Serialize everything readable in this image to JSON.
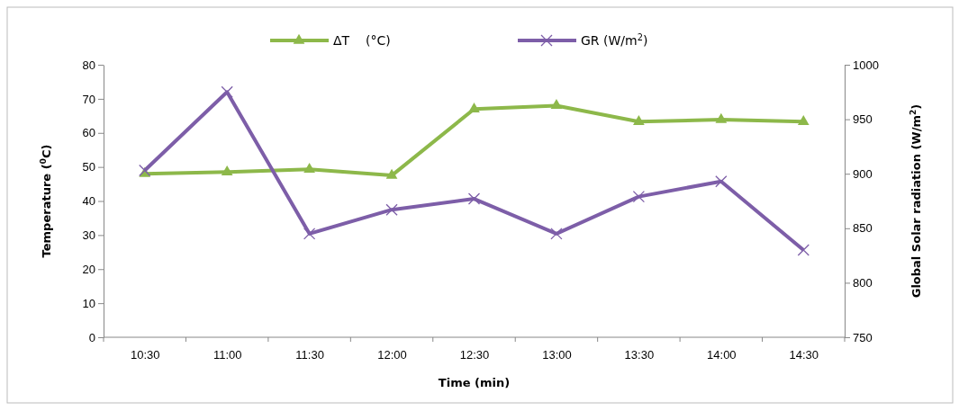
{
  "chart_data": {
    "type": "line",
    "xlabel": "Time (min)",
    "ylabel": "Temperature ($^{0}$C)",
    "y2label": "Global Solar radiation (W/m$^{2}$)",
    "categories": [
      "10:30",
      "11:00",
      "11:30",
      "12:00",
      "12:30",
      "13:00",
      "13:30",
      "14:00",
      "14:30"
    ],
    "series": [
      {
        "name": "ΔT    (°C)",
        "color": "#8db84a",
        "marker": "triangle",
        "values": [
          48,
          48.5,
          49.3,
          47.5,
          67,
          68,
          63.3,
          63.9,
          63.3
        ]
      },
      {
        "name": "GR (W/m$^{2}$)",
        "color": "#7d5ea8",
        "marker": "cross",
        "axis": "y2",
        "values": [
          903,
          975,
          845,
          867,
          877,
          845,
          879,
          893,
          830
        ]
      }
    ],
    "ylim": [
      0,
      80
    ],
    "yticks": [
      0,
      10,
      20,
      30,
      40,
      50,
      60,
      70,
      80
    ],
    "y2lim": [
      750,
      1000
    ],
    "y2ticks": [
      750,
      800,
      850,
      900,
      950,
      1000
    ],
    "legend": "top",
    "grid": false,
    "line_style": "solid"
  }
}
